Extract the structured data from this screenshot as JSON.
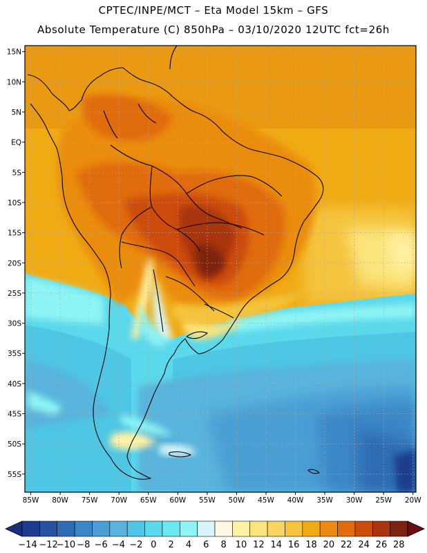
{
  "header": {
    "line1": "CPTEC/INPE/MCT –  Eta Model 15km – GFS",
    "line2": "Absolute Temperature (C) 850hPa – 03/10/2020 12UTC fct=26h"
  },
  "axes": {
    "lat_labels": [
      "15N",
      "10N",
      "5N",
      "EQ",
      "5S",
      "10S",
      "15S",
      "20S",
      "25S",
      "30S",
      "35S",
      "40S",
      "45S",
      "50S",
      "55S"
    ],
    "lat_values": [
      15,
      10,
      5,
      0,
      -5,
      -10,
      -15,
      -20,
      -25,
      -30,
      -35,
      -40,
      -45,
      -50,
      -55
    ],
    "lon_labels": [
      "85W",
      "80W",
      "75W",
      "70W",
      "65W",
      "60W",
      "55W",
      "50W",
      "45W",
      "40W",
      "35W",
      "30W",
      "25W",
      "20W"
    ],
    "lon_values": [
      -85,
      -80,
      -75,
      -70,
      -65,
      -60,
      -55,
      -50,
      -45,
      -40,
      -35,
      -30,
      -25,
      -20
    ],
    "lon_range": [
      -86,
      -19.5
    ],
    "lat_range": [
      -58,
      16
    ],
    "grid": "dotted"
  },
  "colorbar": {
    "labels": [
      "-14",
      "-12",
      "-10",
      "-8",
      "-6",
      "-4",
      "-2",
      "0",
      "2",
      "4",
      "6",
      "8",
      "10",
      "12",
      "14",
      "16",
      "18",
      "20",
      "22",
      "24",
      "26",
      "28"
    ],
    "colors": [
      "#1b3c8c",
      "#2553a0",
      "#2f6cb4",
      "#3b86c6",
      "#4a9ed4",
      "#58b4dc",
      "#4ec6e4",
      "#5ad8ec",
      "#6ce8f0",
      "#8ef4f4",
      "#d8f6fa",
      "#fff8e2",
      "#fff2a4",
      "#fce47c",
      "#f8d462",
      "#f4c43c",
      "#f0aa14",
      "#ea8c10",
      "#e06c0c",
      "#cc4c0c",
      "#a83410",
      "#7e2210"
    ],
    "under_color": "#1b2e7c",
    "over_color": "#6a0c14"
  }
}
